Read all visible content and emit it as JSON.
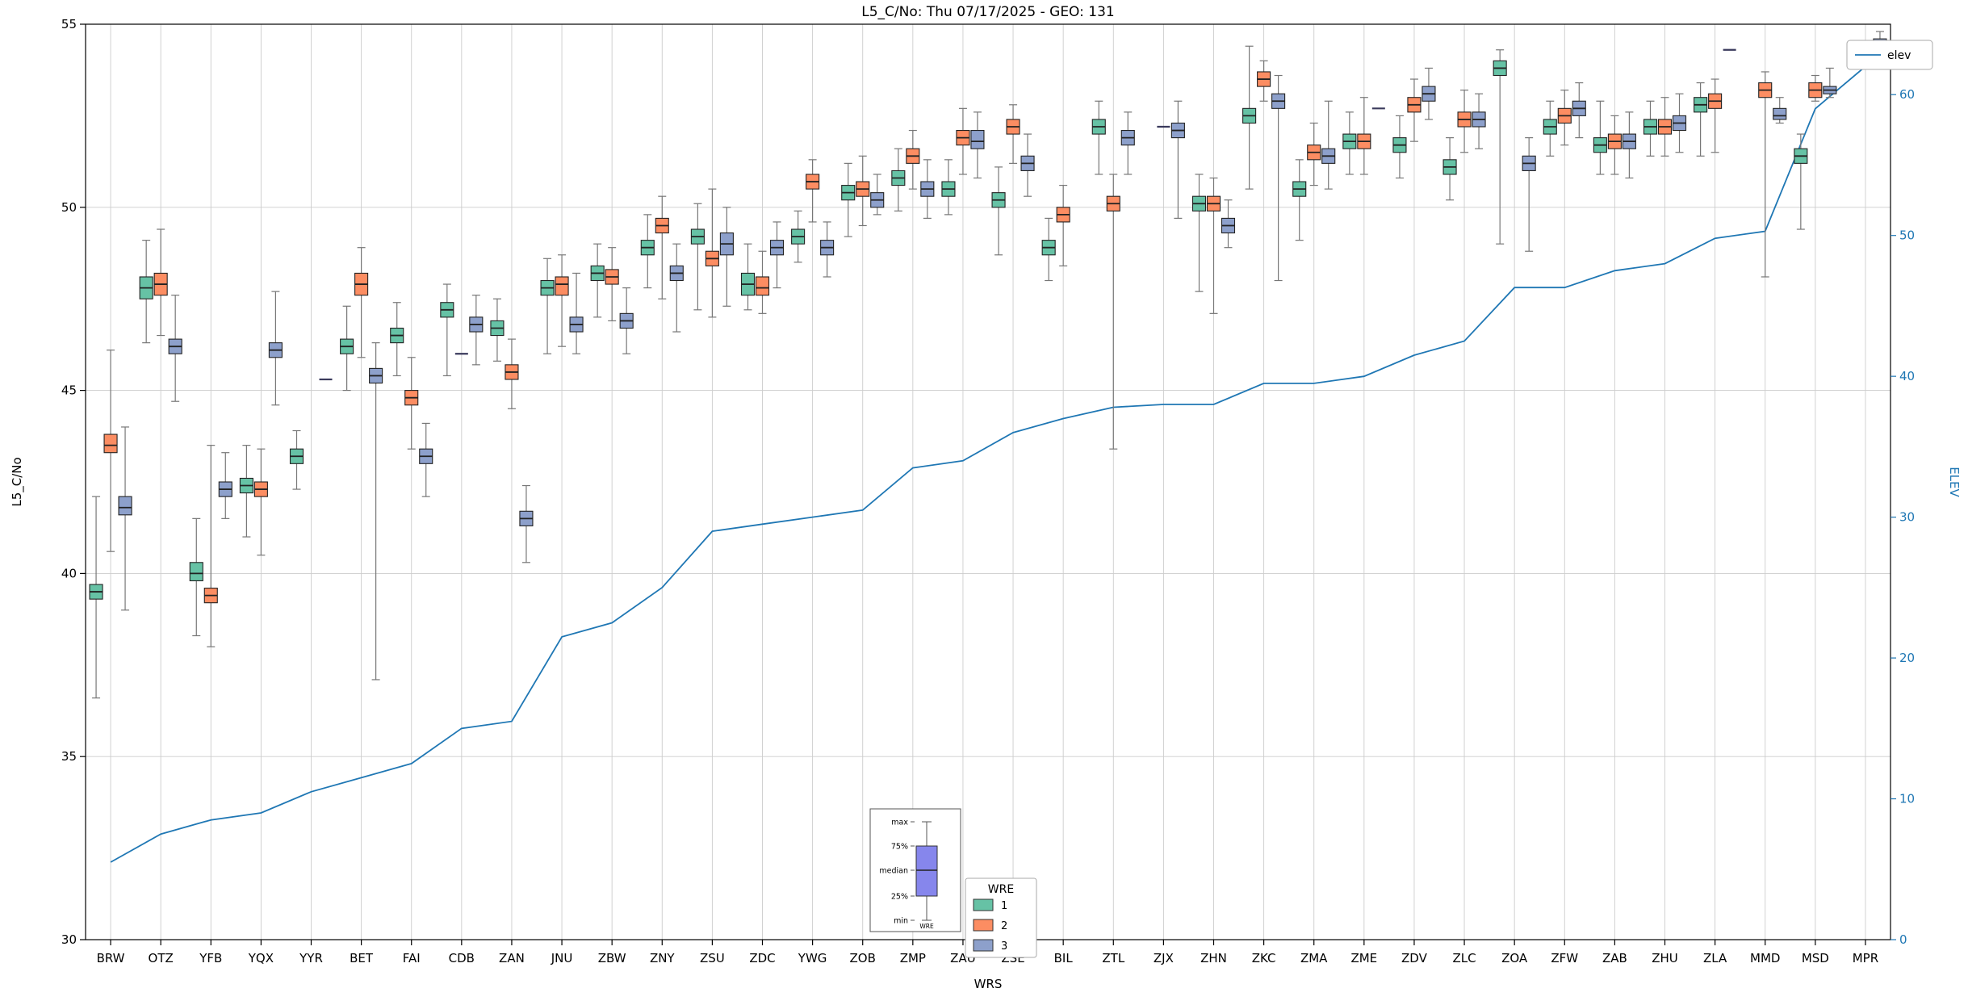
{
  "title": "L5_C/No: Thu 07/17/2025 - GEO: 131",
  "axes": {
    "left_label": "L5_C/No",
    "bottom_label": "WRS",
    "right_label": "ELEV",
    "left_ticks": [
      30,
      35,
      40,
      45,
      50,
      55
    ],
    "right_ticks": [
      0,
      10,
      20,
      30,
      40,
      50,
      60
    ],
    "left_range": [
      30,
      55
    ],
    "right_range": [
      0,
      65
    ]
  },
  "colors": {
    "wre1": "#66c2a5",
    "wre2": "#fc8d62",
    "wre3": "#8da0cb",
    "elev_line": "#1f77b4",
    "grid": "#cccccc",
    "frame": "#000000",
    "whisker": "#777777",
    "median": "#222222",
    "degenerate": "#3a3a5c",
    "inset_box": "#8686ec"
  },
  "legend": {
    "elev_label": "elev",
    "wre_title": "WRE",
    "wre_entries": [
      {
        "label": "1",
        "color_key": "wre1"
      },
      {
        "label": "2",
        "color_key": "wre2"
      },
      {
        "label": "3",
        "color_key": "wre3"
      }
    ]
  },
  "inset": {
    "labels": [
      "max",
      "75%",
      "median",
      "25%",
      "min"
    ],
    "xlabel": "WRE"
  },
  "chart_data": {
    "type": "boxplot+line",
    "title": "L5_C/No: Thu 07/17/2025 - GEO: 131",
    "xlabel": "WRS",
    "ylabel_left": "L5_C/No",
    "ylabel_right": "ELEV",
    "ylim_left": [
      30,
      55
    ],
    "ylim_right": [
      0,
      65
    ],
    "grid": true,
    "categories": [
      "BRW",
      "OTZ",
      "YFB",
      "YQX",
      "YYR",
      "BET",
      "FAI",
      "CDB",
      "ZAN",
      "JNU",
      "ZBW",
      "ZNY",
      "ZSU",
      "ZDC",
      "YWG",
      "ZOB",
      "ZMP",
      "ZAU",
      "ZSE",
      "BIL",
      "ZTL",
      "ZJX",
      "ZHN",
      "ZKC",
      "ZMA",
      "ZME",
      "ZDV",
      "ZLC",
      "ZOA",
      "ZFW",
      "ZAB",
      "ZHU",
      "ZLA",
      "MMD",
      "MSD",
      "MPR"
    ],
    "box_value_order": [
      "min",
      "q1",
      "median",
      "q3",
      "max"
    ],
    "series": [
      {
        "name": "1",
        "color_key": "wre1",
        "boxes": [
          [
            36.6,
            39.3,
            39.5,
            39.7,
            42.1
          ],
          [
            46.3,
            47.5,
            47.8,
            48.1,
            49.1
          ],
          [
            38.3,
            39.8,
            40.0,
            40.3,
            41.5
          ],
          [
            41.0,
            42.2,
            42.4,
            42.6,
            43.5
          ],
          [
            42.3,
            43.0,
            43.2,
            43.4,
            43.9
          ],
          [
            45.0,
            46.0,
            46.2,
            46.4,
            47.3
          ],
          [
            45.4,
            46.3,
            46.5,
            46.7,
            47.4
          ],
          [
            45.4,
            47.0,
            47.2,
            47.4,
            47.9
          ],
          [
            45.8,
            46.5,
            46.7,
            46.9,
            47.5
          ],
          [
            46.0,
            47.6,
            47.8,
            48.0,
            48.6
          ],
          [
            47.0,
            48.0,
            48.2,
            48.4,
            49.0
          ],
          [
            47.8,
            48.7,
            48.9,
            49.1,
            49.8
          ],
          [
            47.2,
            49.0,
            49.2,
            49.4,
            50.1
          ],
          [
            47.2,
            47.6,
            47.9,
            48.2,
            49.0
          ],
          [
            48.5,
            49.0,
            49.2,
            49.4,
            49.9
          ],
          [
            49.2,
            50.2,
            50.4,
            50.6,
            51.2
          ],
          [
            49.9,
            50.6,
            50.8,
            51.0,
            51.6
          ],
          [
            49.8,
            50.3,
            50.5,
            50.7,
            51.3
          ],
          [
            48.7,
            50.0,
            50.2,
            50.4,
            51.1
          ],
          [
            48.0,
            48.7,
            48.9,
            49.1,
            49.7
          ],
          [
            50.9,
            52.0,
            52.2,
            52.4,
            52.9
          ],
          null,
          [
            47.7,
            49.9,
            50.1,
            50.3,
            50.9
          ],
          [
            50.5,
            52.3,
            52.5,
            52.7,
            54.4
          ],
          [
            49.1,
            50.3,
            50.5,
            50.7,
            51.3
          ],
          [
            50.9,
            51.6,
            51.8,
            52.0,
            52.6
          ],
          [
            50.8,
            51.5,
            51.7,
            51.9,
            52.5
          ],
          [
            50.2,
            50.9,
            51.1,
            51.3,
            51.9
          ],
          [
            49.0,
            53.6,
            53.8,
            54.0,
            54.3
          ],
          [
            51.4,
            52.0,
            52.2,
            52.4,
            52.9
          ],
          [
            50.9,
            51.5,
            51.7,
            51.9,
            52.9
          ],
          [
            51.4,
            52.0,
            52.2,
            52.4,
            52.9
          ],
          [
            51.4,
            52.6,
            52.8,
            53.0,
            53.4
          ],
          null,
          [
            49.4,
            51.2,
            51.4,
            51.6,
            52.0
          ],
          null
        ]
      },
      {
        "name": "2",
        "color_key": "wre2",
        "boxes": [
          [
            40.6,
            43.3,
            43.5,
            43.8,
            46.1
          ],
          [
            46.5,
            47.6,
            47.9,
            48.2,
            49.4
          ],
          [
            38.0,
            39.2,
            39.4,
            39.6,
            43.5
          ],
          [
            40.5,
            42.1,
            42.3,
            42.5,
            43.4
          ],
          null,
          [
            45.9,
            47.6,
            47.9,
            48.2,
            48.9
          ],
          [
            43.4,
            44.6,
            44.8,
            45.0,
            45.9
          ],
          [
            46.0,
            46.0,
            46.0,
            46.0,
            46.0
          ],
          [
            44.5,
            45.3,
            45.5,
            45.7,
            46.4
          ],
          [
            46.2,
            47.6,
            47.9,
            48.1,
            48.7
          ],
          [
            46.9,
            47.9,
            48.1,
            48.3,
            48.9
          ],
          [
            47.5,
            49.3,
            49.5,
            49.7,
            50.3
          ],
          [
            47.0,
            48.4,
            48.6,
            48.8,
            50.5
          ],
          [
            47.1,
            47.6,
            47.8,
            48.1,
            48.8
          ],
          [
            49.6,
            50.5,
            50.7,
            50.9,
            51.3
          ],
          [
            49.5,
            50.3,
            50.5,
            50.7,
            51.4
          ],
          [
            50.5,
            51.2,
            51.4,
            51.6,
            52.1
          ],
          [
            50.9,
            51.7,
            51.9,
            52.1,
            52.7
          ],
          [
            51.2,
            52.0,
            52.2,
            52.4,
            52.8
          ],
          [
            48.4,
            49.6,
            49.8,
            50.0,
            50.6
          ],
          [
            43.4,
            49.9,
            50.1,
            50.3,
            50.9
          ],
          [
            52.2,
            52.2,
            52.2,
            52.2,
            52.2
          ],
          [
            47.1,
            49.9,
            50.1,
            50.3,
            50.8
          ],
          [
            52.9,
            53.3,
            53.5,
            53.7,
            54.0
          ],
          [
            50.6,
            51.3,
            51.5,
            51.7,
            52.3
          ],
          [
            50.9,
            51.6,
            51.8,
            52.0,
            53.0
          ],
          [
            51.8,
            52.6,
            52.8,
            53.0,
            53.5
          ],
          [
            51.5,
            52.2,
            52.4,
            52.6,
            53.2
          ],
          null,
          [
            51.7,
            52.3,
            52.5,
            52.7,
            53.2
          ],
          [
            50.9,
            51.6,
            51.8,
            52.0,
            52.5
          ],
          [
            51.4,
            52.0,
            52.2,
            52.4,
            53.0
          ],
          [
            51.5,
            52.7,
            52.9,
            53.1,
            53.5
          ],
          [
            48.1,
            53.0,
            53.2,
            53.4,
            53.7
          ],
          [
            52.9,
            53.0,
            53.2,
            53.4,
            53.6
          ],
          null
        ]
      },
      {
        "name": "3",
        "color_key": "wre3",
        "boxes": [
          [
            39.0,
            41.6,
            41.8,
            42.1,
            44.0
          ],
          [
            44.7,
            46.0,
            46.2,
            46.4,
            47.6
          ],
          [
            41.5,
            42.1,
            42.3,
            42.5,
            43.3
          ],
          [
            44.6,
            45.9,
            46.1,
            46.3,
            47.7
          ],
          [
            45.3,
            45.3,
            45.3,
            45.3,
            45.3
          ],
          [
            37.1,
            45.2,
            45.4,
            45.6,
            46.3
          ],
          [
            42.1,
            43.0,
            43.2,
            43.4,
            44.1
          ],
          [
            45.7,
            46.6,
            46.8,
            47.0,
            47.6
          ],
          [
            40.3,
            41.3,
            41.5,
            41.7,
            42.4
          ],
          [
            46.0,
            46.6,
            46.8,
            47.0,
            48.2
          ],
          [
            46.0,
            46.7,
            46.9,
            47.1,
            47.8
          ],
          [
            46.6,
            48.0,
            48.2,
            48.4,
            49.0
          ],
          [
            47.3,
            48.7,
            49.0,
            49.3,
            50.0
          ],
          [
            47.8,
            48.7,
            48.9,
            49.1,
            49.6
          ],
          [
            48.1,
            48.7,
            48.9,
            49.1,
            49.6
          ],
          [
            49.8,
            50.0,
            50.2,
            50.4,
            50.9
          ],
          [
            49.7,
            50.3,
            50.5,
            50.7,
            51.3
          ],
          [
            50.8,
            51.6,
            51.8,
            52.1,
            52.6
          ],
          [
            50.3,
            51.0,
            51.2,
            51.4,
            52.0
          ],
          null,
          [
            50.9,
            51.7,
            51.9,
            52.1,
            52.6
          ],
          [
            49.7,
            51.9,
            52.1,
            52.3,
            52.9
          ],
          [
            48.9,
            49.3,
            49.5,
            49.7,
            50.2
          ],
          [
            48.0,
            52.7,
            52.9,
            53.1,
            53.6
          ],
          [
            50.5,
            51.2,
            51.4,
            51.6,
            52.9
          ],
          [
            52.7,
            52.7,
            52.7,
            52.7,
            52.7
          ],
          [
            52.4,
            52.9,
            53.1,
            53.3,
            53.8
          ],
          [
            51.6,
            52.2,
            52.4,
            52.6,
            53.1
          ],
          [
            48.8,
            51.0,
            51.2,
            51.4,
            51.9
          ],
          [
            51.9,
            52.5,
            52.7,
            52.9,
            53.4
          ],
          [
            50.8,
            51.6,
            51.8,
            52.0,
            52.6
          ],
          [
            51.5,
            52.1,
            52.3,
            52.5,
            53.1
          ],
          [
            54.3,
            54.3,
            54.3,
            54.3,
            54.3
          ],
          [
            52.3,
            52.4,
            52.5,
            52.7,
            53.0
          ],
          [
            53.0,
            53.1,
            53.2,
            53.3,
            53.8
          ],
          [
            54.0,
            54.2,
            54.4,
            54.6,
            54.8
          ]
        ]
      }
    ],
    "elev": {
      "name": "elev",
      "axis": "right",
      "values": [
        5.5,
        7.5,
        8.5,
        9,
        10.5,
        11.5,
        12.5,
        15,
        15.5,
        21.5,
        22.5,
        25,
        29,
        29.5,
        30,
        30.5,
        33.5,
        34,
        36,
        37,
        37.8,
        38,
        38,
        39.5,
        39.5,
        40,
        41.5,
        42.5,
        46.3,
        46.3,
        47.5,
        48,
        49.8,
        50.3,
        59,
        62
      ]
    }
  }
}
